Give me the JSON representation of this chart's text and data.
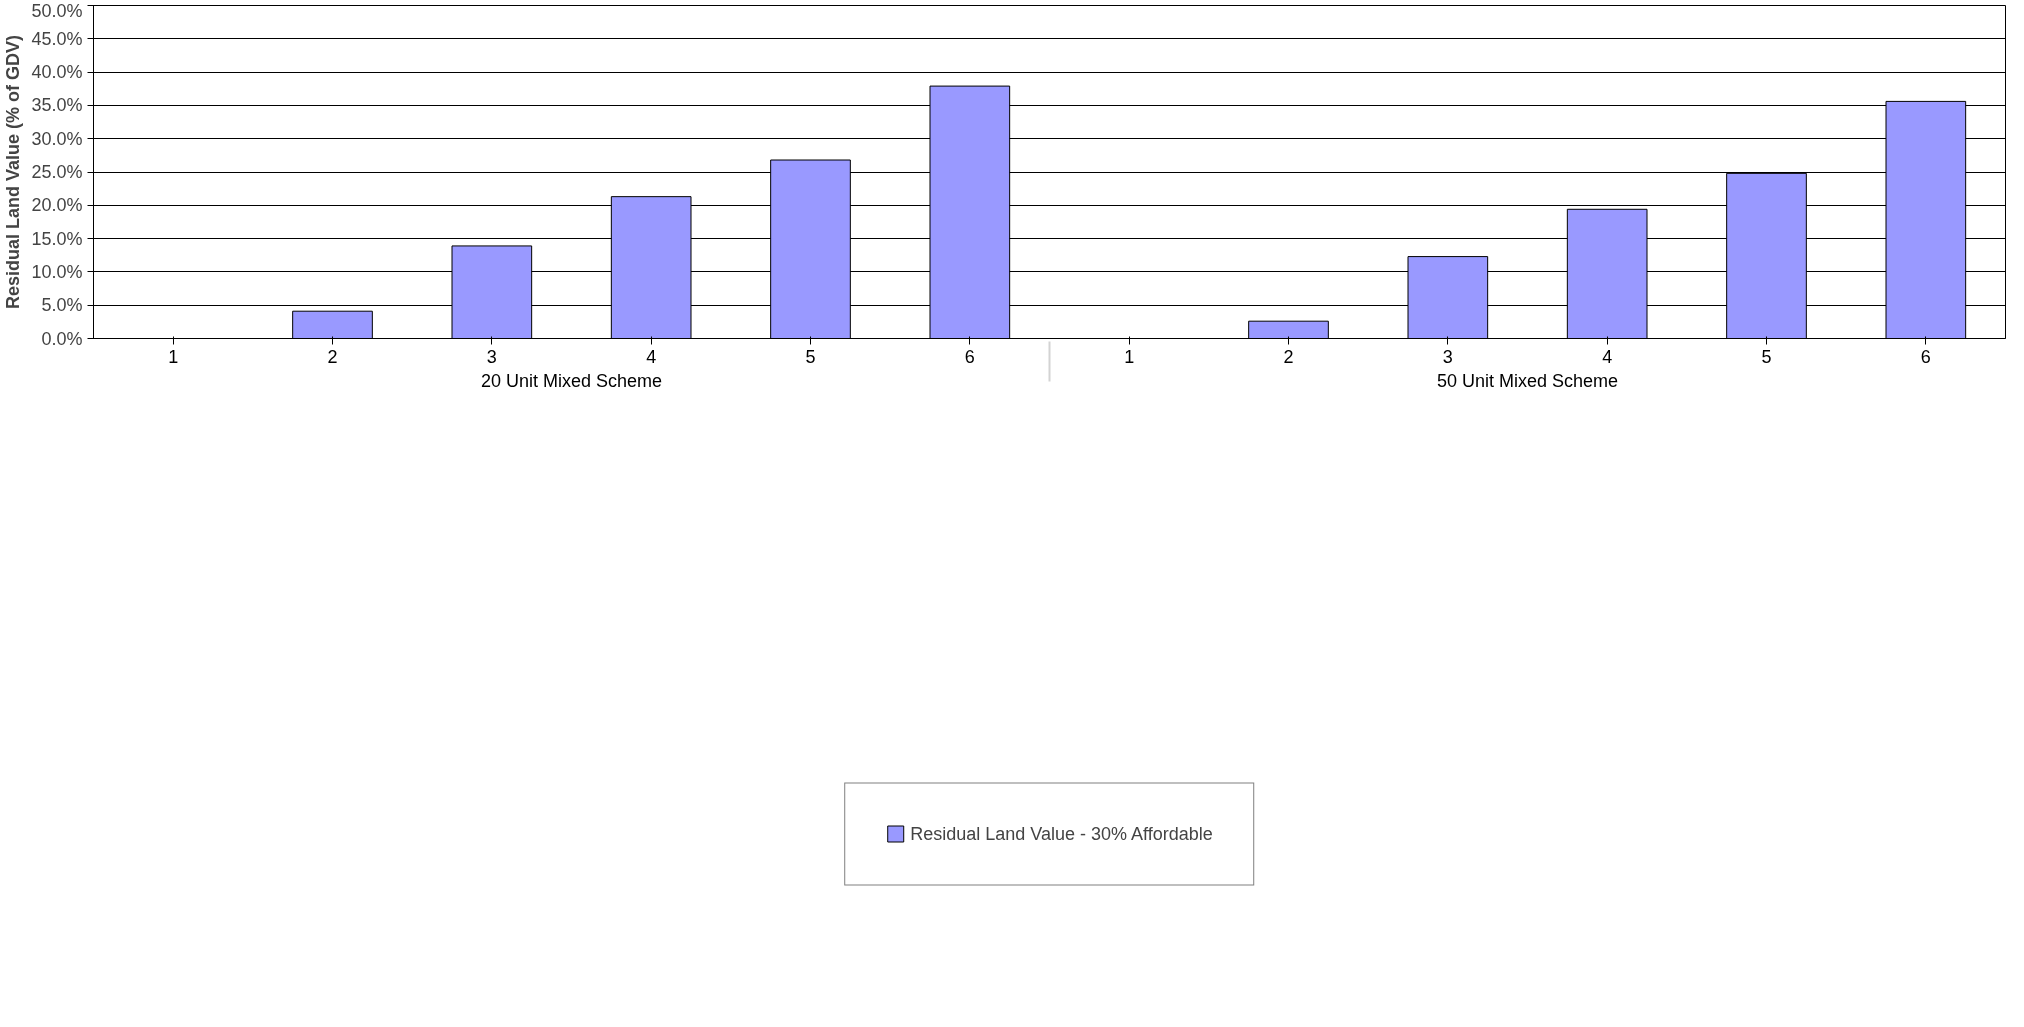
{
  "chart_data": {
    "type": "bar",
    "ylabel": "Residual Land Value (% of GDV)",
    "categories": [
      "1",
      "2",
      "3",
      "4",
      "5",
      "6",
      "1",
      "2",
      "3",
      "4",
      "5",
      "6"
    ],
    "annotations": [
      "20 Unit Mixed Scheme",
      "50 Unit Mixed Scheme"
    ],
    "series": [
      {
        "name": "Residual Land Value - 30% Affordable",
        "color": "#9999ff",
        "values": [
          null,
          4.1,
          13.9,
          21.3,
          26.8,
          37.9,
          null,
          2.6,
          12.3,
          19.4,
          24.8,
          35.6
        ]
      }
    ],
    "ylim": [
      0,
      50
    ],
    "yticks": [
      {
        "value": 0,
        "label": "0.0%"
      },
      {
        "value": 5,
        "label": "5.0%"
      },
      {
        "value": 10,
        "label": "10.0%"
      },
      {
        "value": 15,
        "label": "15.0%"
      },
      {
        "value": 20,
        "label": "20.0%"
      },
      {
        "value": 25,
        "label": "25.0%"
      },
      {
        "value": 30,
        "label": "30.0%"
      },
      {
        "value": 35,
        "label": "35.0%"
      },
      {
        "value": 40,
        "label": "40.0%"
      },
      {
        "value": 45,
        "label": "45.0%"
      },
      {
        "value": 50,
        "label": "50.0%"
      }
    ],
    "grid": "y",
    "legend": "bottom"
  }
}
